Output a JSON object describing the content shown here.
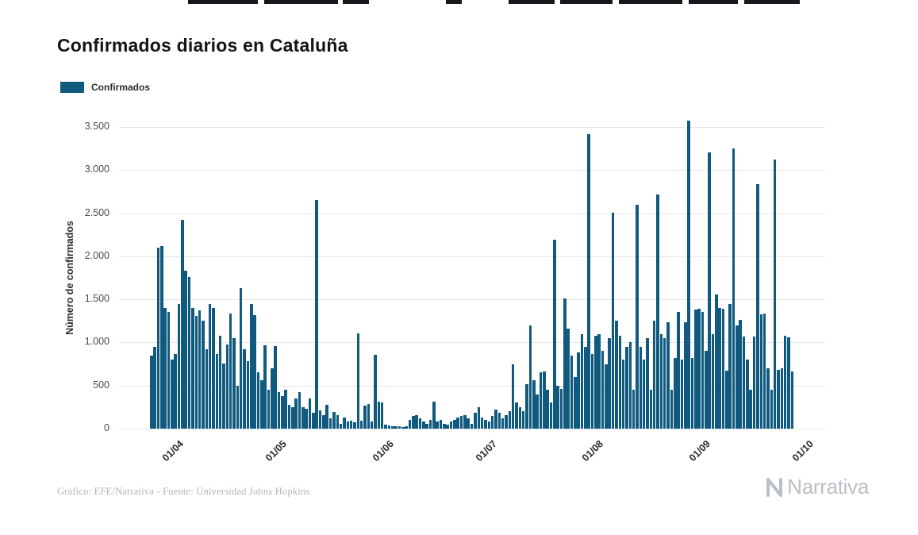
{
  "header": {
    "title": "Confirmados diarios en Cataluña"
  },
  "legend": {
    "label": "Confirmados",
    "color": "#0f5a7e"
  },
  "footer": {
    "caption": "Gráfico: EFE/Narrativa - Fuente: Universidad Johns Hopkins",
    "logo_text": "Narrativa"
  },
  "chart_data": {
    "type": "bar",
    "title": "Confirmados diarios en Cataluña",
    "series_name": "Confirmados",
    "xlabel": "",
    "ylabel": "Número de confirmados",
    "ylim": [
      0,
      3500
    ],
    "yticks": [
      0,
      500,
      1000,
      1500,
      2000,
      2500,
      3000,
      3500
    ],
    "ytick_labels": [
      "0",
      "500",
      "1.000",
      "1.500",
      "2.000",
      "2.500",
      "3.000",
      "3.500"
    ],
    "xtick_labels": [
      "01/04",
      "01/05",
      "01/06",
      "01/07",
      "01/08",
      "01/09",
      "01/10"
    ],
    "xtick_day_offsets": [
      17,
      47,
      78,
      108,
      139,
      170,
      200
    ],
    "domain_days": 205,
    "first_bar_day_offset": 9,
    "grid": true,
    "legend_position": "top-left",
    "bar_color": "#0f5a7e",
    "grid_color": "#e7e7e7",
    "dates": [
      "24/03",
      "25/03",
      "26/03",
      "27/03",
      "28/03",
      "29/03",
      "30/03",
      "31/03",
      "01/04",
      "02/04",
      "03/04",
      "04/04",
      "05/04",
      "06/04",
      "07/04",
      "08/04",
      "09/04",
      "10/04",
      "11/04",
      "12/04",
      "13/04",
      "14/04",
      "15/04",
      "16/04",
      "17/04",
      "18/04",
      "19/04",
      "20/04",
      "21/04",
      "22/04",
      "23/04",
      "24/04",
      "25/04",
      "26/04",
      "27/04",
      "28/04",
      "29/04",
      "30/04",
      "01/05",
      "02/05",
      "03/05",
      "04/05",
      "05/05",
      "06/05",
      "07/05",
      "08/05",
      "09/05",
      "10/05",
      "11/05",
      "12/05",
      "13/05",
      "14/05",
      "15/05",
      "16/05",
      "17/05",
      "18/05",
      "19/05",
      "20/05",
      "21/05",
      "22/05",
      "23/05",
      "24/05",
      "25/05",
      "26/05",
      "27/05",
      "28/05",
      "29/05",
      "30/05",
      "31/05",
      "01/06",
      "02/06",
      "03/06",
      "04/06",
      "05/06",
      "06/06",
      "07/06",
      "08/06",
      "09/06",
      "10/06",
      "11/06",
      "12/06",
      "13/06",
      "14/06",
      "15/06",
      "16/06",
      "17/06",
      "18/06",
      "19/06",
      "20/06",
      "21/06",
      "22/06",
      "23/06",
      "24/06",
      "25/06",
      "26/06",
      "27/06",
      "28/06",
      "29/06",
      "30/06",
      "01/07",
      "02/07",
      "03/07",
      "04/07",
      "05/07",
      "06/07",
      "07/07",
      "08/07",
      "09/07",
      "10/07",
      "11/07",
      "12/07",
      "13/07",
      "14/07",
      "15/07",
      "16/07",
      "17/07",
      "18/07",
      "19/07",
      "20/07",
      "21/07",
      "22/07",
      "23/07",
      "24/07",
      "25/07",
      "26/07",
      "27/07",
      "28/07",
      "29/07",
      "30/07",
      "31/07",
      "01/08",
      "02/08",
      "03/08",
      "04/08",
      "05/08",
      "06/08",
      "07/08",
      "08/08",
      "09/08",
      "10/08",
      "11/08",
      "12/08",
      "13/08",
      "14/08",
      "15/08",
      "16/08",
      "17/08",
      "18/08",
      "19/08",
      "20/08",
      "21/08",
      "22/08",
      "23/08",
      "24/08",
      "25/08",
      "26/08",
      "27/08",
      "28/08",
      "29/08",
      "30/08",
      "31/08",
      "01/09",
      "02/09",
      "03/09",
      "04/09",
      "05/09",
      "06/09",
      "07/09",
      "08/09",
      "09/09",
      "10/09",
      "11/09",
      "12/09",
      "13/09",
      "14/09",
      "15/09",
      "16/09",
      "17/09",
      "18/09",
      "19/09",
      "20/09",
      "21/09",
      "22/09",
      "23/09",
      "24/09",
      "25/09",
      "26/09"
    ],
    "values": [
      850,
      950,
      2100,
      2120,
      1400,
      1350,
      800,
      870,
      1450,
      2420,
      1830,
      1760,
      1400,
      1310,
      1370,
      1250,
      920,
      1450,
      1400,
      870,
      1080,
      760,
      980,
      1340,
      1050,
      500,
      1630,
      920,
      780,
      1450,
      1320,
      650,
      560,
      970,
      450,
      700,
      960,
      420,
      380,
      450,
      280,
      250,
      350,
      420,
      250,
      230,
      350,
      180,
      2650,
      210,
      160,
      280,
      120,
      190,
      160,
      60,
      130,
      80,
      90,
      70,
      1110,
      90,
      270,
      290,
      80,
      860,
      310,
      300,
      50,
      40,
      30,
      25,
      30,
      20,
      30,
      100,
      150,
      160,
      120,
      80,
      60,
      100,
      310,
      80,
      100,
      60,
      50,
      80,
      100,
      130,
      150,
      160,
      120,
      60,
      180,
      250,
      130,
      100,
      80,
      150,
      220,
      180,
      120,
      160,
      200,
      750,
      300,
      250,
      200,
      520,
      1200,
      560,
      400,
      650,
      660,
      450,
      300,
      2190,
      500,
      460,
      1510,
      1160,
      850,
      600,
      880,
      1100,
      950,
      3420,
      870,
      1080,
      1100,
      900,
      750,
      1050,
      2510,
      1250,
      1080,
      800,
      950,
      1000,
      450,
      2600,
      950,
      800,
      1050,
      450,
      1250,
      2720,
      1100,
      1050,
      1230,
      450,
      820,
      1350,
      800,
      1230,
      3570,
      820,
      1380,
      1390,
      1350,
      900,
      3210,
      1100,
      1560,
      1400,
      1390,
      670,
      1450,
      3250,
      1200,
      1260,
      1070,
      800,
      450,
      1070,
      2840,
      1330,
      1340,
      700,
      450,
      3120,
      680,
      700,
      1080,
      1060,
      660
    ]
  }
}
